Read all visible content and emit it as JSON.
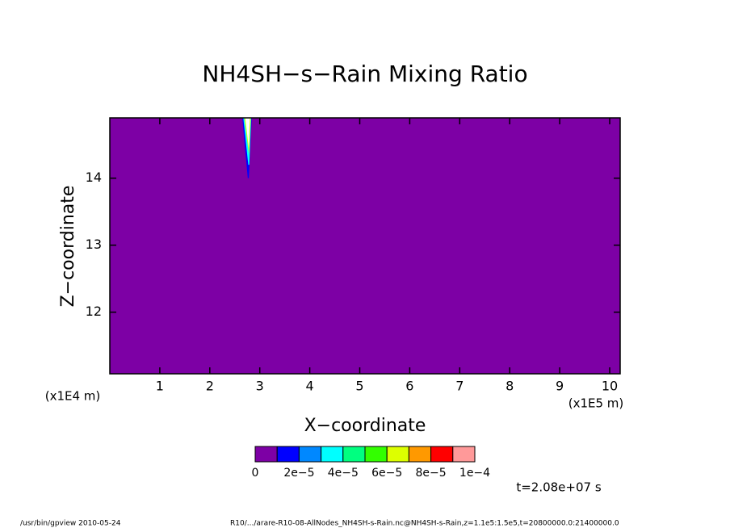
{
  "chart_data": {
    "type": "contour",
    "title": "NH4SH−s−Rain Mixing Ratio",
    "x_label": "X−coordinate",
    "y_label": "Z−coordinate",
    "x_unit": "(x1E5 m)",
    "y_unit": "(x1E4 m)",
    "xlim": [
      0,
      10.21
    ],
    "ylim": [
      11.08,
      14.9
    ],
    "xticks": [
      1,
      2,
      3,
      4,
      5,
      6,
      7,
      8,
      9,
      10
    ],
    "yticks": [
      12,
      13,
      14
    ],
    "background_color": "#7d00a5",
    "contours": [
      {
        "color": "#0000ff",
        "points": [
          [
            2.65,
            14.9
          ],
          [
            2.84,
            14.9
          ],
          [
            2.78,
            14.0
          ],
          [
            2.76,
            14.0
          ]
        ]
      },
      {
        "color": "#00ffff",
        "points": [
          [
            2.67,
            14.9
          ],
          [
            2.83,
            14.9
          ],
          [
            2.79,
            14.2
          ],
          [
            2.77,
            14.2
          ]
        ]
      },
      {
        "color": "#ddff00",
        "points": [
          [
            2.69,
            14.9
          ],
          [
            2.82,
            14.9
          ],
          [
            2.785,
            14.35
          ]
        ]
      },
      {
        "color": "#ffffff",
        "points": [
          [
            2.71,
            14.9
          ],
          [
            2.8,
            14.9
          ],
          [
            2.78,
            14.45
          ]
        ]
      }
    ],
    "colorbar": {
      "colors": [
        "#7d00a5",
        "#0000ff",
        "#0088ff",
        "#00ffff",
        "#00ff80",
        "#33ff00",
        "#ddff00",
        "#ff9900",
        "#ff0000",
        "#ff9999"
      ],
      "ticks": [
        0,
        {
          "value": 2e-05,
          "label": "2e−5"
        },
        {
          "value": 4e-05,
          "label": "4e−5"
        },
        {
          "value": 6e-05,
          "label": "6e−5"
        },
        {
          "value": 8e-05,
          "label": "8e−5"
        },
        {
          "value": 0.0001,
          "label": "1e−4"
        }
      ],
      "lim": [
        0,
        0.0001
      ]
    },
    "time_label": "t=2.08e+07 s",
    "footer_left": "/usr/bin/gpview  2010-05-24",
    "footer_right": "R10/.../arare-R10-08-AllNodes_NH4SH-s-Rain.nc@NH4SH-s-Rain,z=1.1e5:1.5e5,t=20800000.0:21400000.0"
  }
}
